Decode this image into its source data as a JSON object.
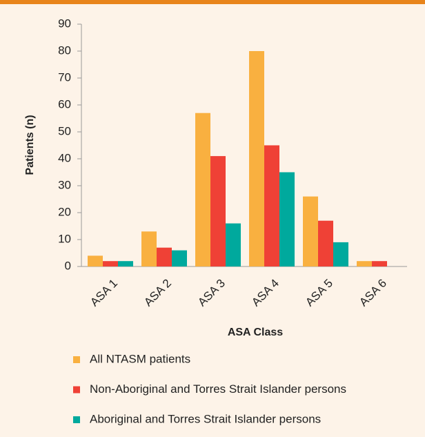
{
  "chart_data": {
    "type": "bar",
    "xlabel": "ASA Class",
    "ylabel": "Patients (n)",
    "categories": [
      "ASA 1",
      "ASA 2",
      "ASA 3",
      "ASA 4",
      "ASA 5",
      "ASA 6"
    ],
    "series": [
      {
        "name": "All NTASM patients",
        "color": "#f9b040",
        "values": [
          4,
          13,
          57,
          80,
          26,
          2
        ]
      },
      {
        "name": "Non-Aboriginal and Torres Strait Islander persons",
        "color": "#ef4136",
        "values": [
          2,
          7,
          41,
          45,
          17,
          2
        ]
      },
      {
        "name": "Aboriginal and Torres Strait Islander persons",
        "color": "#00a99d",
        "values": [
          2,
          6,
          16,
          35,
          9,
          0
        ]
      }
    ],
    "ylim": [
      0,
      90
    ],
    "yticks": [
      0,
      10,
      20,
      30,
      40,
      50,
      60,
      70,
      80,
      90
    ],
    "grid": false
  }
}
